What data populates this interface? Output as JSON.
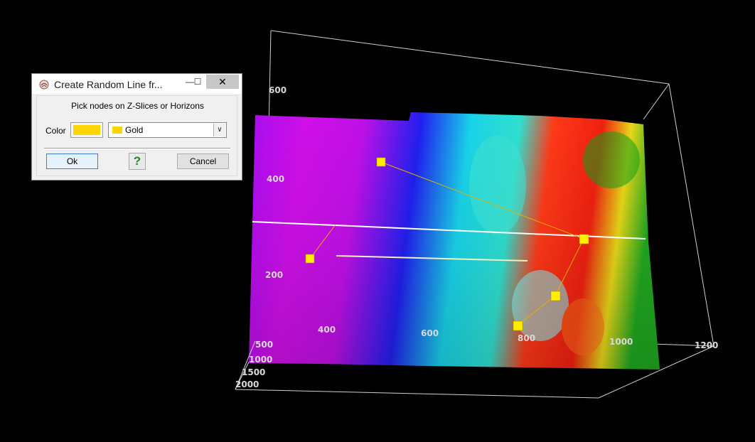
{
  "dialog": {
    "title": "Create Random Line fr...",
    "minimize_glyph": "—",
    "maximize_glyph": "☐",
    "close_glyph": "✕",
    "hint": "Pick nodes on Z-Slices or Horizons",
    "color_label": "Color",
    "color_value": "Gold",
    "color_hex": "#ffd500",
    "dropdown_glyph": "∨",
    "help_glyph": "?",
    "ok_label": "Ok",
    "cancel_label": "Cancel",
    "icons": {
      "app": "app-logo-icon",
      "help": "help-icon",
      "dropdown": "chevron-down-icon"
    }
  },
  "scene": {
    "axis_labels": {
      "z_600": "600",
      "z_400": "400",
      "z_200": "200",
      "x_400": "400",
      "x_600": "600",
      "x_800": "800",
      "x_1000": "1000",
      "x_1200": "1200",
      "y_500": "500",
      "y_1000": "1000",
      "y_1500": "1500",
      "y_2000": "2000"
    },
    "node_color": "#ffee00",
    "line_color": "#e8b000",
    "surface_colors": [
      "#b000f0",
      "#e010e0",
      "#2020f0",
      "#10d8e0",
      "#30e8c0",
      "#ff2020",
      "#ff6010",
      "#e8e010",
      "#10b010"
    ]
  }
}
